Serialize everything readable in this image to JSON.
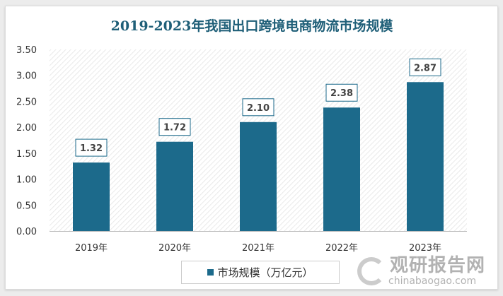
{
  "chart_data": {
    "type": "bar",
    "title": "2019-2023年我国出口跨境电商物流市场规模",
    "categories": [
      "2019年",
      "2020年",
      "2021年",
      "2022年",
      "2023年"
    ],
    "series": [
      {
        "name": "市场规模（万亿元）",
        "values": [
          1.32,
          1.72,
          2.1,
          2.38,
          2.87
        ],
        "color": "#1c6a8b"
      }
    ],
    "data_labels": [
      "1.32",
      "1.72",
      "2.10",
      "2.38",
      "2.87"
    ],
    "ylim": [
      0,
      3.5
    ],
    "yticks": [
      "0.00",
      "0.50",
      "1.00",
      "1.50",
      "2.00",
      "2.50",
      "3.00",
      "3.50"
    ],
    "xlabel": "",
    "ylabel": "",
    "grid": false,
    "background": "diagonal-hatch",
    "legend_position": "bottom-left"
  },
  "watermark": {
    "cn": "观研报告网",
    "en": "chinabaogao.com"
  }
}
